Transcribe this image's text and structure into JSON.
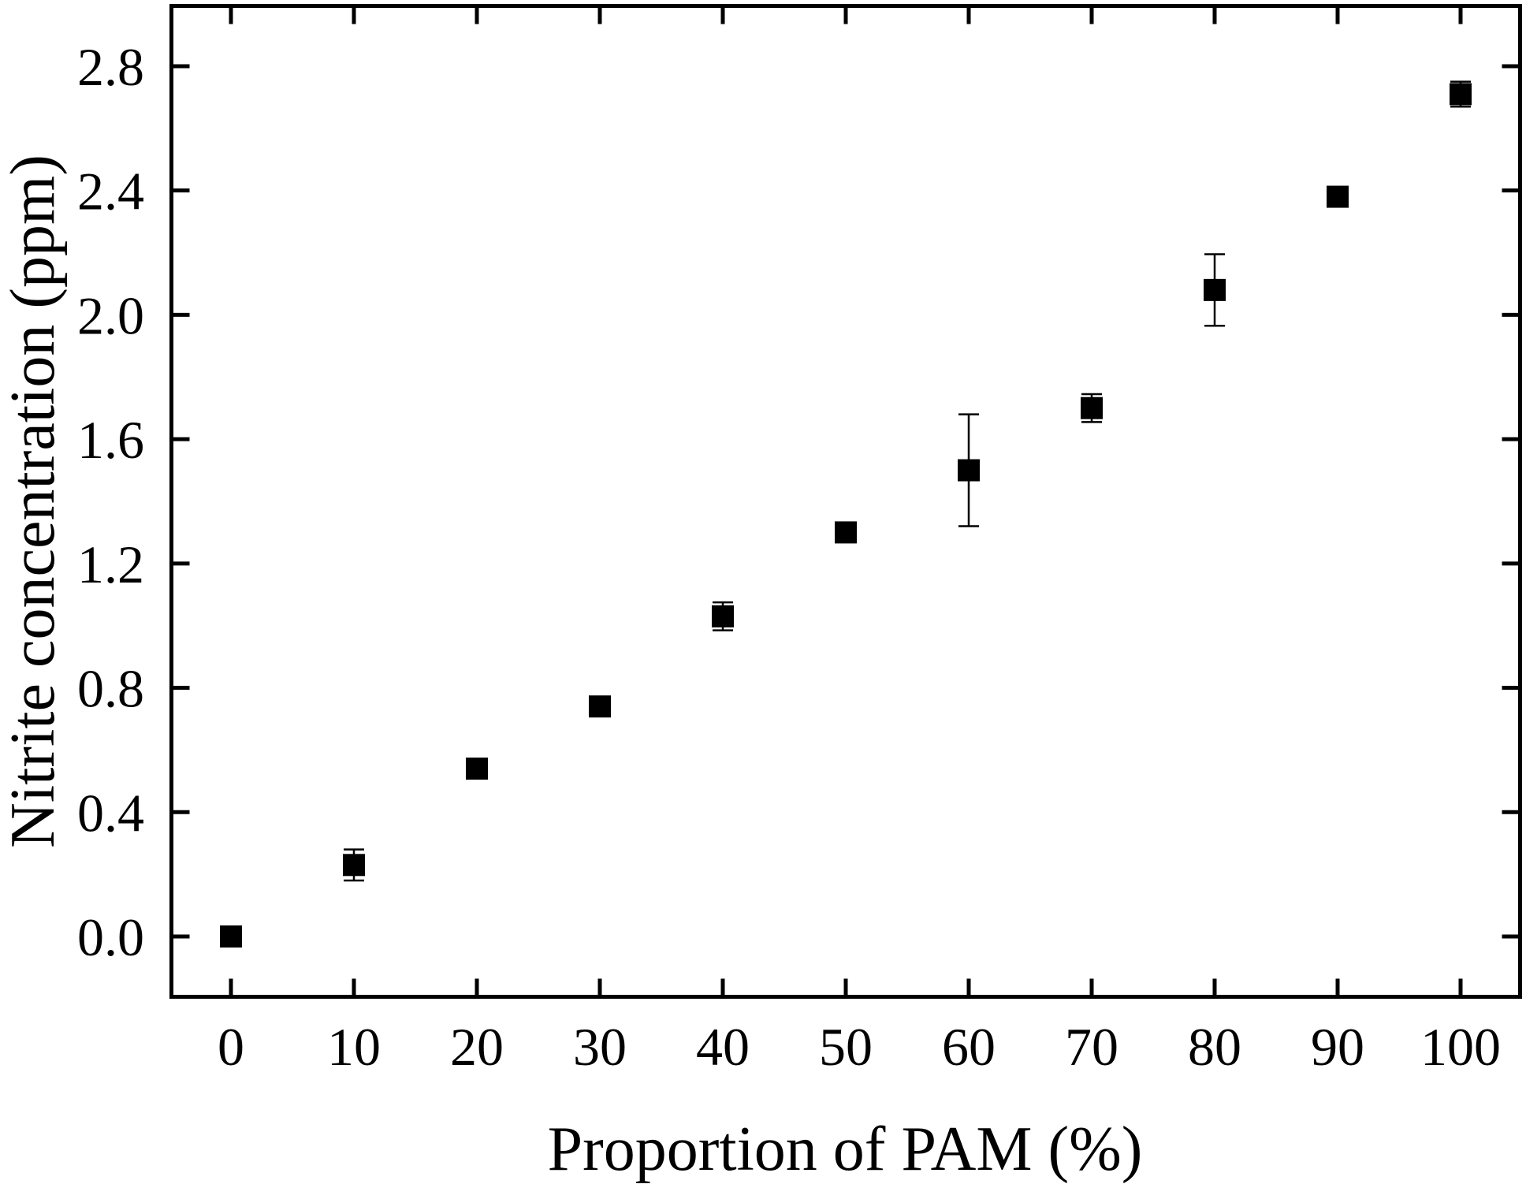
{
  "chart_data": {
    "type": "scatter",
    "title": "",
    "xlabel": "Proportion of PAM (%)",
    "ylabel": "Nitrite concentration (ppm)",
    "xlim": [
      -5,
      105
    ],
    "ylim": [
      -0.2,
      2.96
    ],
    "xticks": [
      "0",
      "10",
      "20",
      "30",
      "40",
      "50",
      "60",
      "70",
      "80",
      "90",
      "100"
    ],
    "yticks": [
      "0.0",
      "0.4",
      "0.8",
      "1.2",
      "1.6",
      "2.0",
      "2.4",
      "2.8"
    ],
    "grid": false,
    "legend": null,
    "marker": "filled-square",
    "color": "#000000",
    "x": [
      0,
      10,
      20,
      30,
      40,
      50,
      60,
      70,
      80,
      90,
      100
    ],
    "series": [
      {
        "name": "Nitrite concentration",
        "values": [
          0.0,
          0.23,
          0.54,
          0.74,
          1.03,
          1.3,
          1.5,
          1.7,
          2.08,
          2.38,
          2.71
        ],
        "error": [
          0.0,
          0.05,
          0.02,
          0.0,
          0.045,
          0.01,
          0.18,
          0.045,
          0.115,
          0.0,
          0.04
        ]
      }
    ]
  }
}
